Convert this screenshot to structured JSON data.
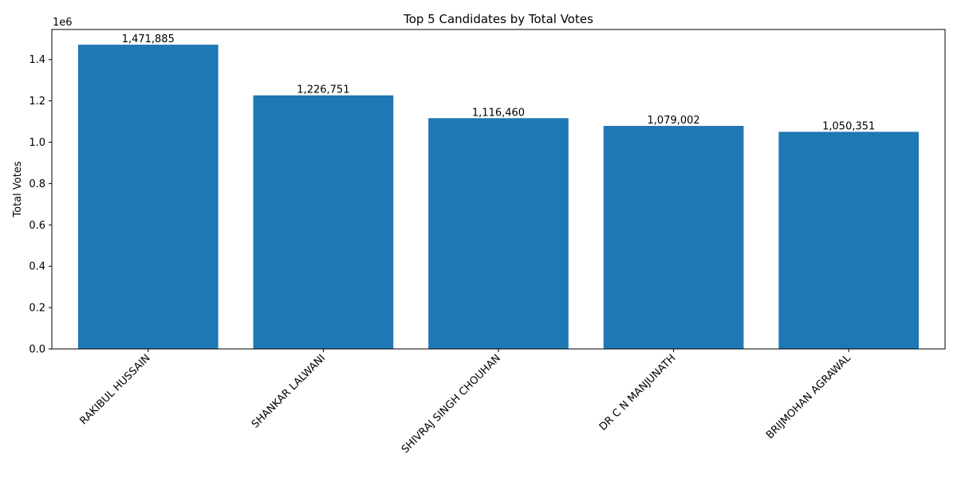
{
  "chart_data": {
    "type": "bar",
    "title": "Top 5 Candidates by Total Votes",
    "xlabel": "",
    "ylabel": "Total Votes",
    "offset_text": "1e6",
    "categories": [
      "RAKIBUL HUSSAIN",
      "SHANKAR LALWANI",
      "SHIVRAJ SINGH CHOUHAN",
      "DR C N MANJUNATH",
      "BRIJMOHAN AGRAWAL"
    ],
    "values": [
      1471885,
      1226751,
      1116460,
      1079002,
      1050351
    ],
    "data_labels": [
      "1,471,885",
      "1,226,751",
      "1,116,460",
      "1,079,002",
      "1,050,351"
    ],
    "ylim": [
      0,
      1545479
    ],
    "yticks": [
      0,
      200000,
      400000,
      600000,
      800000,
      1000000,
      1200000,
      1400000
    ],
    "ytick_labels": [
      "0.0",
      "0.2",
      "0.4",
      "0.6",
      "0.8",
      "1.0",
      "1.2",
      "1.4"
    ],
    "bar_color": "#1f77b4",
    "grid": false,
    "legend": "none"
  }
}
